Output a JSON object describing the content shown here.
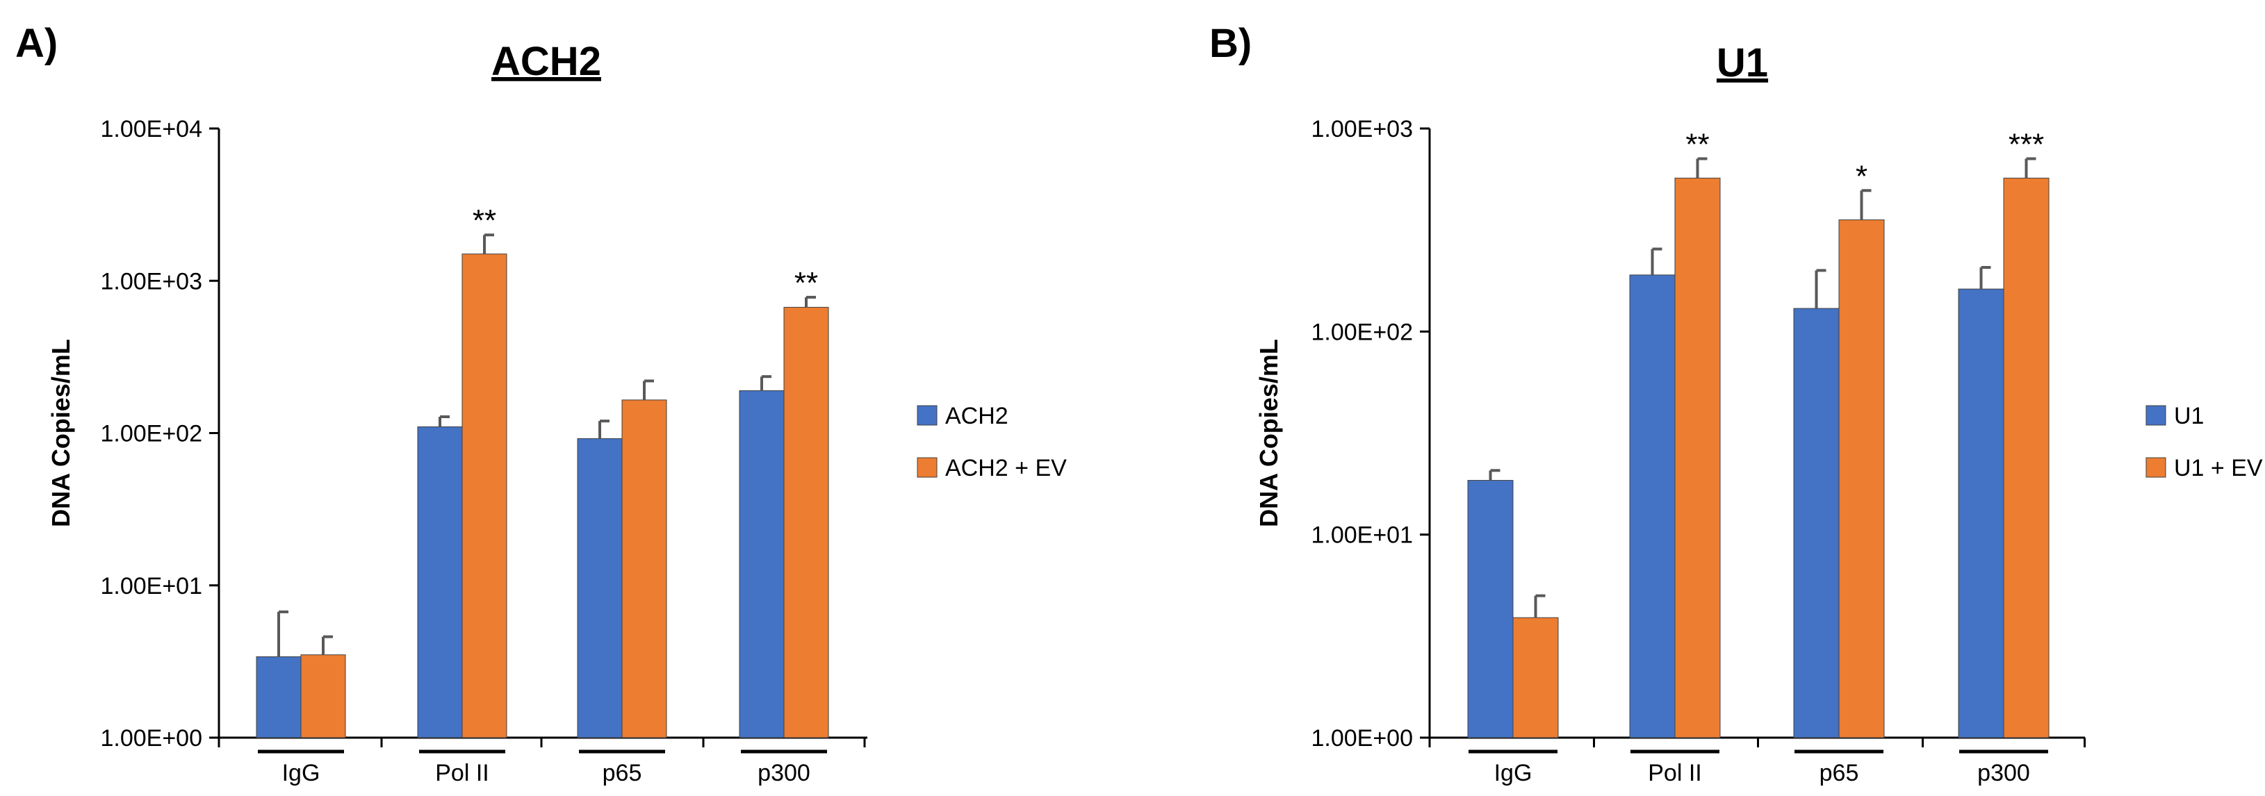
{
  "colors": {
    "series1": "#4472C4",
    "series2": "#ED7D31",
    "axis": "#000000",
    "errorbar": "#595959"
  },
  "chart_data": [
    {
      "type": "bar",
      "panel_label": "A)",
      "title": "ACH2",
      "ylabel": "DNA Copies/mL",
      "xlabel": "",
      "yscale": "log",
      "ylim": [
        1,
        10000
      ],
      "ytick_values": [
        1,
        10,
        100,
        1000,
        10000
      ],
      "ytick_labels": [
        "1.00E+00",
        "1.00E+01",
        "1.00E+02",
        "1.00E+03",
        "1.00E+04"
      ],
      "categories": [
        "IgG",
        "Pol II",
        "p65",
        "p300"
      ],
      "legend_position": "right",
      "grid": false,
      "series": [
        {
          "name": "ACH2",
          "values": [
            3.4,
            110,
            92,
            190
          ],
          "errors": [
            3.3,
            18,
            28,
            45
          ]
        },
        {
          "name": "ACH2 + EV",
          "values": [
            3.5,
            1500,
            165,
            670
          ],
          "errors": [
            1.1,
            500,
            55,
            110
          ]
        }
      ],
      "annotations": [
        {
          "category": "Pol II",
          "series": 1,
          "text": "**"
        },
        {
          "category": "p300",
          "series": 1,
          "text": "**"
        }
      ]
    },
    {
      "type": "bar",
      "panel_label": "B)",
      "title": "U1",
      "ylabel": "DNA Copies/mL",
      "xlabel": "",
      "yscale": "log",
      "ylim": [
        1,
        1000
      ],
      "ytick_values": [
        1,
        10,
        100,
        1000
      ],
      "ytick_labels": [
        "1.00E+00",
        "1.00E+01",
        "1.00E+02",
        "1.00E+03"
      ],
      "categories": [
        "IgG",
        "Pol II",
        "p65",
        "p300"
      ],
      "legend_position": "right",
      "grid": false,
      "series": [
        {
          "name": "U1",
          "values": [
            18.5,
            190,
            130,
            162
          ],
          "errors": [
            2.2,
            65,
            70,
            45
          ]
        },
        {
          "name": "U1 + EV",
          "values": [
            3.9,
            570,
            355,
            570
          ],
          "errors": [
            1.1,
            140,
            140,
            140
          ]
        }
      ],
      "annotations": [
        {
          "category": "Pol II",
          "series": 1,
          "text": "**"
        },
        {
          "category": "p65",
          "series": 1,
          "text": "*"
        },
        {
          "category": "p300",
          "series": 1,
          "text": "***"
        }
      ]
    }
  ]
}
